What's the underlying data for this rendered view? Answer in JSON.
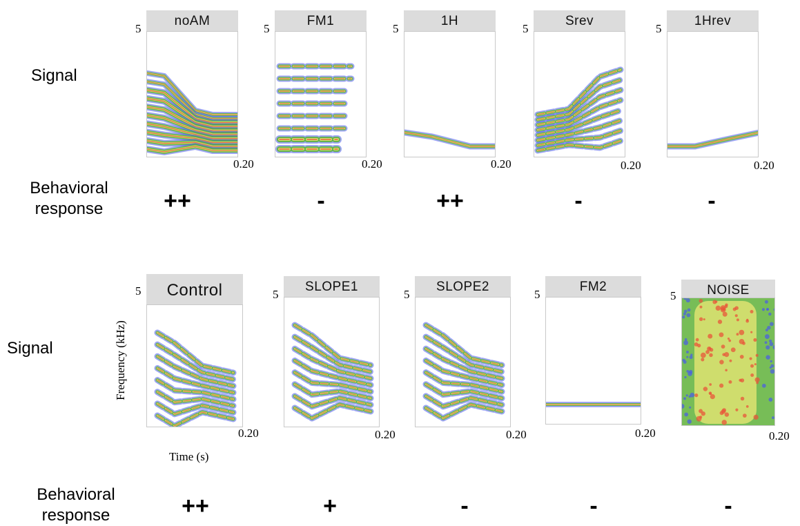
{
  "rows": [
    {
      "signal_label": "Signal",
      "behavior_label": "Behavioral\nresponse",
      "panels": [
        {
          "title": "noAM",
          "y_max": "5",
          "x_max": "0.20",
          "response": "++",
          "pattern": "harmonics-down"
        },
        {
          "title": "FM1",
          "y_max": "5",
          "x_max": "0.20",
          "response": "-",
          "pattern": "fm-bands"
        },
        {
          "title": "1H",
          "y_max": "5",
          "x_max": "0.20",
          "response": "++",
          "pattern": "single-down"
        },
        {
          "title": "Srev",
          "y_max": "5",
          "x_max": "0.20",
          "response": "-",
          "pattern": "call-rev"
        },
        {
          "title": "1Hrev",
          "y_max": "5",
          "x_max": "0.20",
          "response": "-",
          "pattern": "single-up"
        }
      ]
    },
    {
      "signal_label": "Signal",
      "behavior_label": "Behavioral\nresponse",
      "panels": [
        {
          "title": "Control",
          "y_max": "5",
          "x_max": "0.20",
          "response": "++",
          "pattern": "call"
        },
        {
          "title": "SLOPE1",
          "y_max": "5",
          "x_max": "0.20",
          "response": "+",
          "pattern": "call"
        },
        {
          "title": "SLOPE2",
          "y_max": "5",
          "x_max": "0.20",
          "response": "-",
          "pattern": "call"
        },
        {
          "title": "FM2",
          "y_max": "5",
          "x_max": "0.20",
          "response": "-",
          "pattern": "flat"
        },
        {
          "title": "NOISE",
          "y_max": "5",
          "x_max": "0.20",
          "response": "-",
          "pattern": "noise"
        }
      ]
    }
  ],
  "axes": {
    "y_label": "Frequency (kHz)",
    "x_label": "Time (s)"
  },
  "colors": {
    "outer": "#4a5be8",
    "mid": "#5fb23a",
    "inner": "#d8e070",
    "core": "#e8563a",
    "title_bg": "#dcdcdc"
  }
}
